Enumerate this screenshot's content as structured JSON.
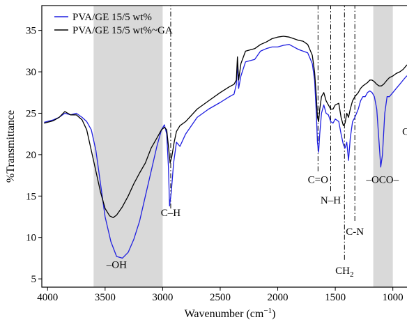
{
  "chart_data": {
    "type": "line",
    "xlabel": "Wavenumber (cm",
    "xlabel_sup": "−1",
    "xlabel_close": ")",
    "ylabel": "%Transmittance",
    "xlim": [
      4050,
      780
    ],
    "ylim": [
      4,
      38
    ],
    "x_reversed": true,
    "x_ticks": [
      4000,
      3500,
      3000,
      2500,
      2000,
      1500,
      1000
    ],
    "y_ticks": [
      5,
      10,
      15,
      20,
      25,
      30,
      35
    ],
    "legend_position": "top-left",
    "shaded_bands": [
      [
        3600,
        3000
      ],
      [
        1170,
        1000
      ]
    ],
    "series": [
      {
        "name": "PVA/GE 15/5 wt%",
        "color": "#1f1fe0",
        "points": [
          [
            4030,
            23.9
          ],
          [
            3950,
            24.2
          ],
          [
            3900,
            24.5
          ],
          [
            3850,
            25.0
          ],
          [
            3800,
            24.8
          ],
          [
            3750,
            25.0
          ],
          [
            3700,
            24.5
          ],
          [
            3660,
            24.0
          ],
          [
            3620,
            23.0
          ],
          [
            3580,
            20.5
          ],
          [
            3540,
            16.5
          ],
          [
            3500,
            12.5
          ],
          [
            3450,
            9.5
          ],
          [
            3400,
            7.7
          ],
          [
            3350,
            7.5
          ],
          [
            3300,
            8.2
          ],
          [
            3250,
            9.8
          ],
          [
            3200,
            12.0
          ],
          [
            3150,
            15.0
          ],
          [
            3100,
            18.0
          ],
          [
            3050,
            21.0
          ],
          [
            3010,
            23.0
          ],
          [
            2985,
            23.6
          ],
          [
            2965,
            22.5
          ],
          [
            2950,
            18.5
          ],
          [
            2940,
            13.8
          ],
          [
            2925,
            15.5
          ],
          [
            2905,
            19.0
          ],
          [
            2880,
            21.5
          ],
          [
            2850,
            21.0
          ],
          [
            2800,
            22.5
          ],
          [
            2700,
            24.5
          ],
          [
            2600,
            25.5
          ],
          [
            2500,
            26.3
          ],
          [
            2420,
            27.0
          ],
          [
            2380,
            27.3
          ],
          [
            2360,
            28.5
          ],
          [
            2350,
            31.0
          ],
          [
            2340,
            28.0
          ],
          [
            2320,
            29.5
          ],
          [
            2280,
            31.2
          ],
          [
            2200,
            31.5
          ],
          [
            2150,
            32.5
          ],
          [
            2100,
            32.8
          ],
          [
            2050,
            33.0
          ],
          [
            2000,
            33.0
          ],
          [
            1950,
            33.2
          ],
          [
            1900,
            33.3
          ],
          [
            1860,
            33.0
          ],
          [
            1820,
            32.7
          ],
          [
            1780,
            32.5
          ],
          [
            1740,
            32.3
          ],
          [
            1700,
            31.0
          ],
          [
            1680,
            29.0
          ],
          [
            1665,
            25.0
          ],
          [
            1655,
            21.5
          ],
          [
            1645,
            20.3
          ],
          [
            1635,
            22.5
          ],
          [
            1620,
            25.0
          ],
          [
            1600,
            26.0
          ],
          [
            1580,
            25.0
          ],
          [
            1560,
            24.8
          ],
          [
            1540,
            24.0
          ],
          [
            1520,
            23.8
          ],
          [
            1500,
            24.3
          ],
          [
            1470,
            24.0
          ],
          [
            1450,
            22.5
          ],
          [
            1430,
            21.2
          ],
          [
            1415,
            20.8
          ],
          [
            1400,
            21.5
          ],
          [
            1385,
            19.3
          ],
          [
            1370,
            22.0
          ],
          [
            1350,
            24.0
          ],
          [
            1330,
            24.5
          ],
          [
            1300,
            25.5
          ],
          [
            1280,
            26.5
          ],
          [
            1260,
            27.0
          ],
          [
            1240,
            27.0
          ],
          [
            1220,
            27.5
          ],
          [
            1200,
            27.7
          ],
          [
            1180,
            27.5
          ],
          [
            1160,
            27.0
          ],
          [
            1140,
            25.5
          ],
          [
            1120,
            21.5
          ],
          [
            1105,
            18.5
          ],
          [
            1090,
            20.0
          ],
          [
            1070,
            25.0
          ],
          [
            1050,
            27.0
          ],
          [
            1030,
            27.0
          ],
          [
            1000,
            27.5
          ],
          [
            970,
            28.0
          ],
          [
            940,
            28.5
          ],
          [
            910,
            29.0
          ],
          [
            880,
            29.5
          ],
          [
            860,
            29.3
          ],
          [
            840,
            28.5
          ],
          [
            820,
            26.0
          ],
          [
            810,
            25.3
          ],
          [
            800,
            25.5
          ],
          [
            790,
            25.8
          ]
        ]
      },
      {
        "name": "PVA/GE 15/5 wt%~GA",
        "color": "#000000",
        "points": [
          [
            4030,
            23.8
          ],
          [
            3950,
            24.1
          ],
          [
            3900,
            24.5
          ],
          [
            3850,
            25.2
          ],
          [
            3800,
            24.8
          ],
          [
            3750,
            24.8
          ],
          [
            3700,
            24.2
          ],
          [
            3660,
            23.0
          ],
          [
            3620,
            20.5
          ],
          [
            3580,
            18.0
          ],
          [
            3540,
            15.5
          ],
          [
            3500,
            13.5
          ],
          [
            3460,
            12.6
          ],
          [
            3430,
            12.4
          ],
          [
            3400,
            12.7
          ],
          [
            3350,
            13.7
          ],
          [
            3300,
            15.0
          ],
          [
            3250,
            16.5
          ],
          [
            3200,
            17.8
          ],
          [
            3150,
            19.0
          ],
          [
            3100,
            20.8
          ],
          [
            3050,
            22.0
          ],
          [
            3010,
            23.0
          ],
          [
            2985,
            23.3
          ],
          [
            2965,
            23.0
          ],
          [
            2950,
            21.0
          ],
          [
            2935,
            19.0
          ],
          [
            2920,
            19.8
          ],
          [
            2900,
            21.5
          ],
          [
            2880,
            22.8
          ],
          [
            2850,
            23.5
          ],
          [
            2800,
            24.0
          ],
          [
            2700,
            25.5
          ],
          [
            2600,
            26.5
          ],
          [
            2500,
            27.5
          ],
          [
            2420,
            28.2
          ],
          [
            2380,
            28.5
          ],
          [
            2360,
            29.0
          ],
          [
            2350,
            31.8
          ],
          [
            2340,
            29.0
          ],
          [
            2320,
            31.0
          ],
          [
            2280,
            32.5
          ],
          [
            2200,
            32.8
          ],
          [
            2150,
            33.3
          ],
          [
            2100,
            33.6
          ],
          [
            2050,
            34.0
          ],
          [
            2000,
            34.2
          ],
          [
            1950,
            34.3
          ],
          [
            1900,
            34.2
          ],
          [
            1860,
            34.0
          ],
          [
            1820,
            33.8
          ],
          [
            1780,
            33.7
          ],
          [
            1740,
            33.3
          ],
          [
            1700,
            32.0
          ],
          [
            1680,
            30.0
          ],
          [
            1665,
            27.0
          ],
          [
            1655,
            24.5
          ],
          [
            1645,
            24.0
          ],
          [
            1635,
            25.5
          ],
          [
            1620,
            27.0
          ],
          [
            1600,
            27.5
          ],
          [
            1580,
            26.5
          ],
          [
            1560,
            26.0
          ],
          [
            1540,
            25.5
          ],
          [
            1520,
            25.5
          ],
          [
            1500,
            26.0
          ],
          [
            1470,
            26.2
          ],
          [
            1450,
            24.5
          ],
          [
            1430,
            23.5
          ],
          [
            1415,
            23.8
          ],
          [
            1400,
            25.0
          ],
          [
            1385,
            24.5
          ],
          [
            1370,
            25.5
          ],
          [
            1350,
            26.5
          ],
          [
            1330,
            27.0
          ],
          [
            1300,
            27.5
          ],
          [
            1280,
            28.0
          ],
          [
            1260,
            28.3
          ],
          [
            1240,
            28.5
          ],
          [
            1220,
            28.7
          ],
          [
            1200,
            29.0
          ],
          [
            1180,
            29.0
          ],
          [
            1160,
            28.8
          ],
          [
            1140,
            28.5
          ],
          [
            1120,
            28.3
          ],
          [
            1100,
            28.3
          ],
          [
            1080,
            28.5
          ],
          [
            1050,
            29.0
          ],
          [
            1030,
            29.3
          ],
          [
            1000,
            29.5
          ],
          [
            970,
            29.8
          ],
          [
            940,
            30.0
          ],
          [
            910,
            30.3
          ],
          [
            880,
            30.8
          ],
          [
            860,
            31.0
          ],
          [
            845,
            30.5
          ],
          [
            835,
            29.5
          ],
          [
            820,
            29.8
          ],
          [
            800,
            30.3
          ],
          [
            790,
            30.5
          ]
        ]
      }
    ],
    "annotations": [
      {
        "label": "–OH",
        "x": 3400,
        "y": 6.3
      },
      {
        "label": "C–H",
        "x": 2930,
        "y": 12.6
      },
      {
        "label": "C=O",
        "x": 1650,
        "y": 16.6
      },
      {
        "label": "N–H",
        "x": 1540,
        "y": 14.1
      },
      {
        "label": "C-N",
        "x": 1330,
        "y": 10.3
      },
      {
        "label": "CH",
        "sub": "2",
        "x": 1420,
        "y": 5.6
      },
      {
        "label": "–OCO–",
        "x": 1090,
        "y": 16.6
      },
      {
        "label": "C-O",
        "x": 840,
        "y": 22.4
      }
    ],
    "reference_lines": [
      {
        "x": 2930,
        "y_from": 13.5,
        "y_to": 38
      },
      {
        "x": 1650,
        "y_from": 18.0,
        "y_to": 38
      },
      {
        "x": 1540,
        "y_from": 15.6,
        "y_to": 38
      },
      {
        "x": 1420,
        "y_from": 7.3,
        "y_to": 38
      },
      {
        "x": 1330,
        "y_from": 12.0,
        "y_to": 38
      },
      {
        "x": 830,
        "y_from": 24.5,
        "y_to": 38
      }
    ]
  }
}
